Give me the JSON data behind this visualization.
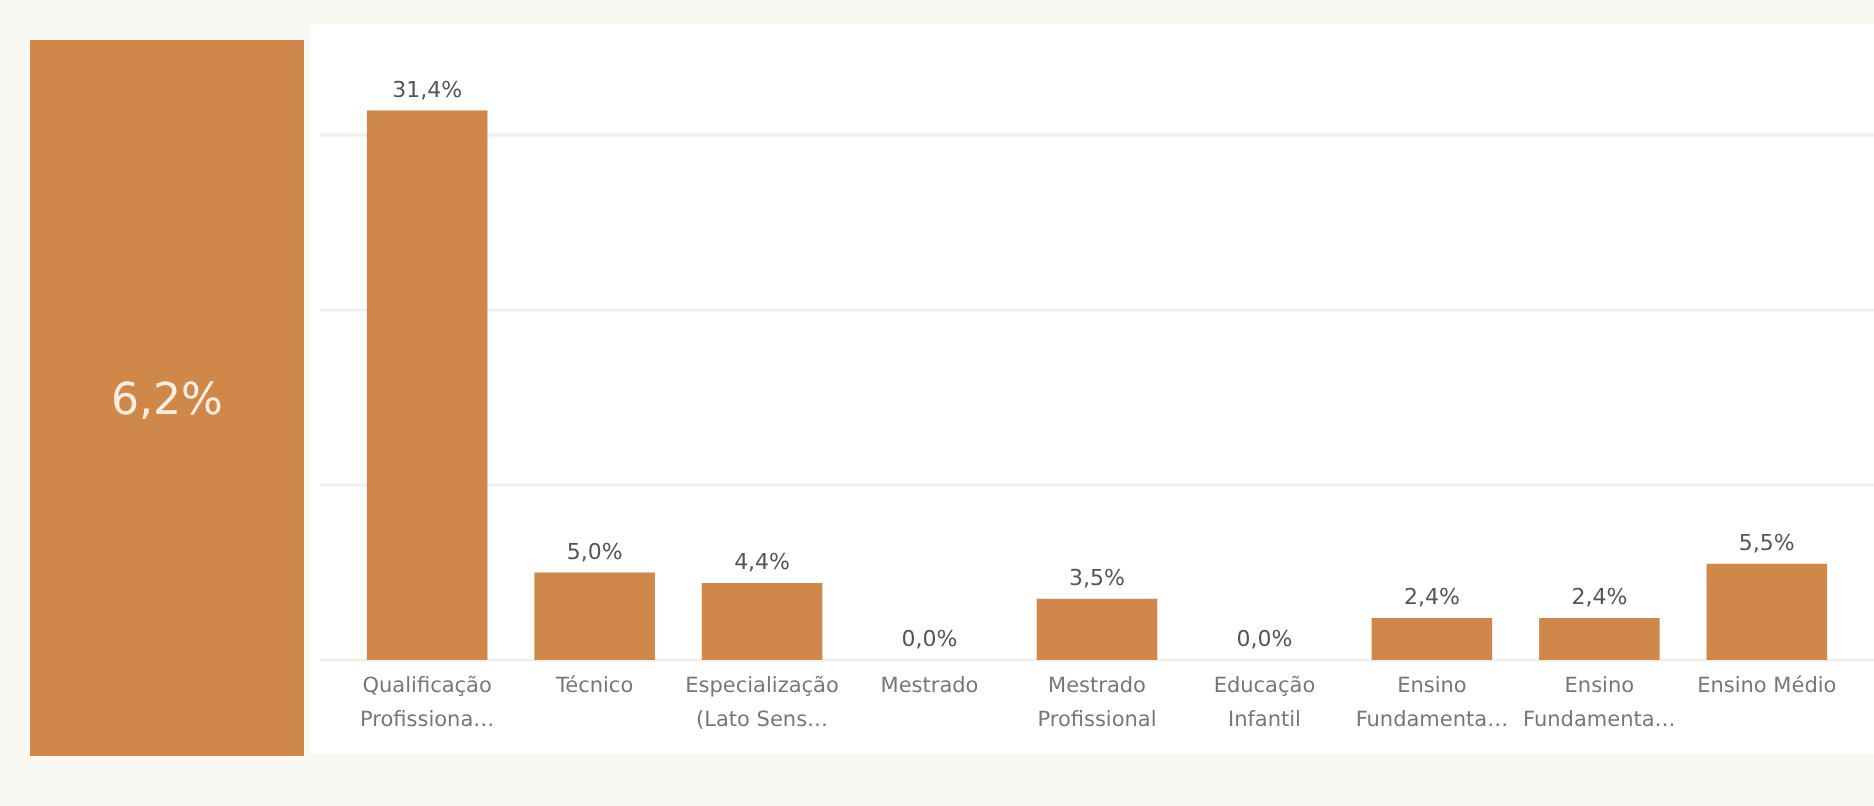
{
  "chart_data": [
    {
      "type": "other",
      "annotations": [
        "6,2%"
      ]
    },
    {
      "type": "bar",
      "categories": [
        "Qualificação Profissiona…",
        "Técnico",
        "Especialização (Lato Sens…",
        "Mestrado",
        "Mestrado Profissional",
        "Educação Infantil",
        "Ensino Fundamenta…",
        "Ensino Fundamenta…",
        "Ensino Médio"
      ],
      "values": [
        31.4,
        5.0,
        4.4,
        0.0,
        3.5,
        0.0,
        2.4,
        2.4,
        5.5
      ],
      "value_labels": [
        "31,4%",
        "5,0%",
        "4,4%",
        "0,0%",
        "3,5%",
        "0,0%",
        "2,4%",
        "2,4%",
        "5,5%"
      ],
      "color": "#d0874a",
      "ylim": [
        0,
        36
      ],
      "yticks": [
        {
          "value": 0,
          "label": null
        },
        {
          "value": 10,
          "label": null
        },
        {
          "value": 20,
          "label": null
        },
        {
          "value": 30,
          "label": null
        }
      ],
      "grid": "y",
      "tick_labels": "x"
    }
  ]
}
